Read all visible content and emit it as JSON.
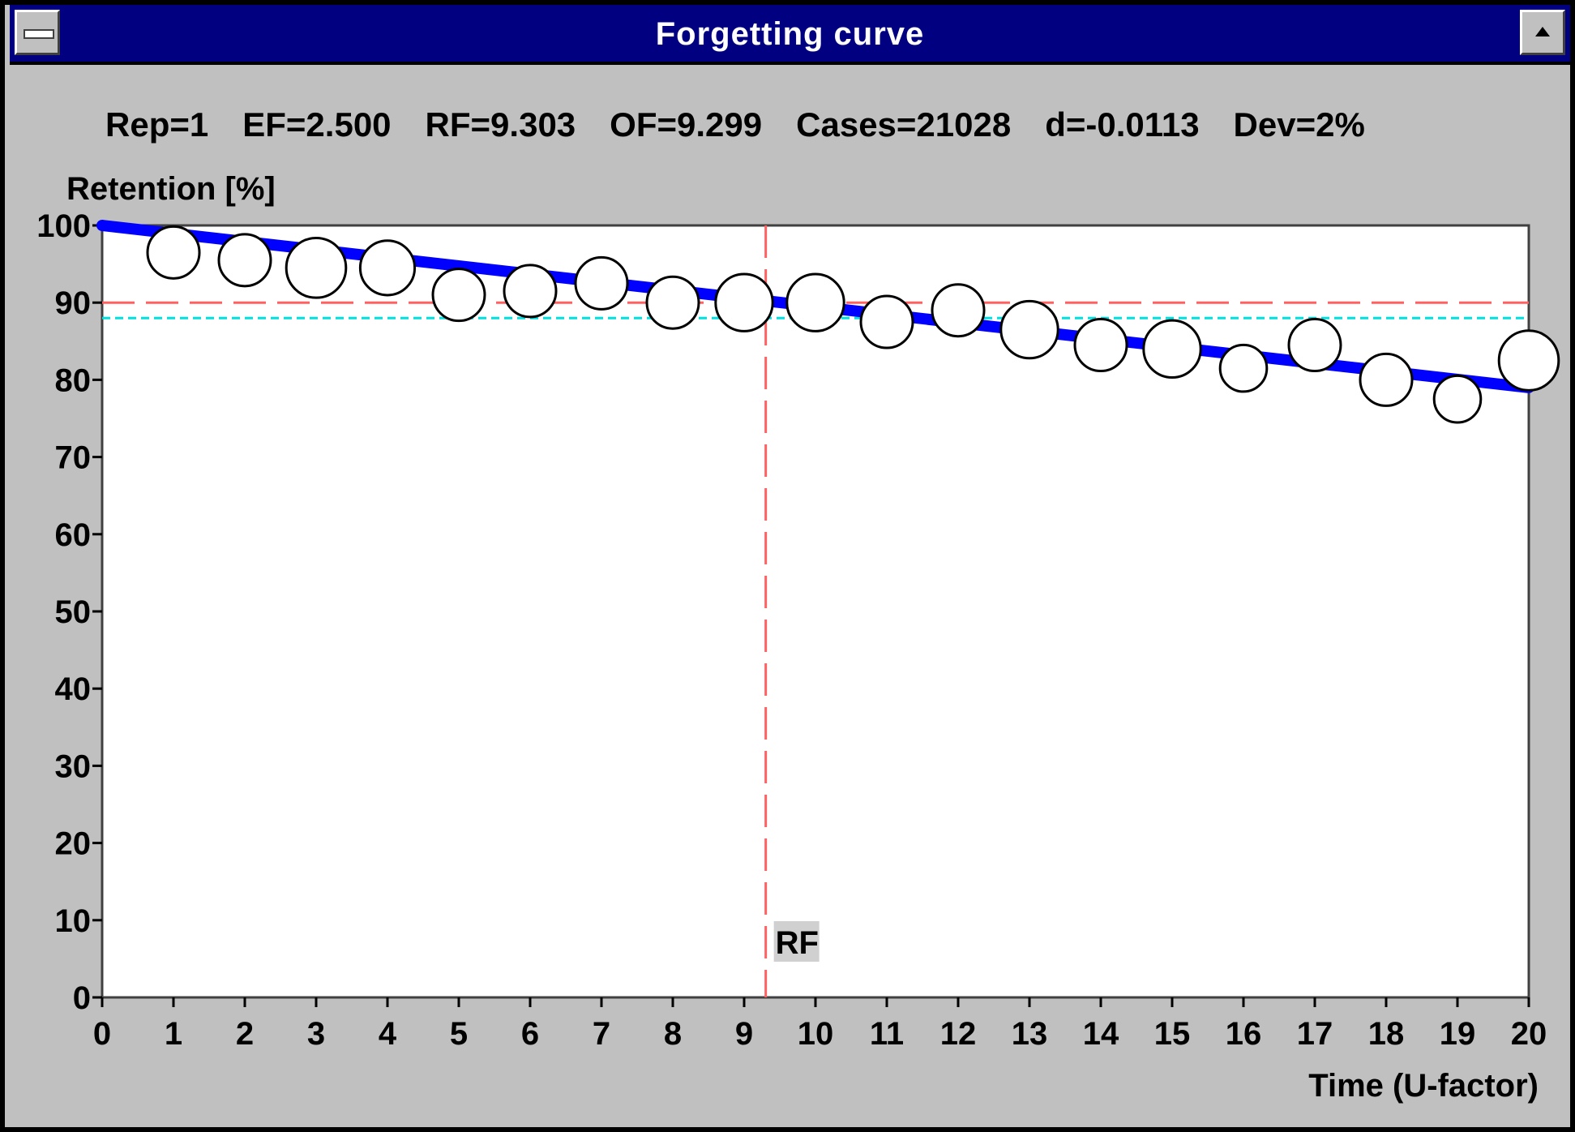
{
  "window": {
    "title": "Forgetting curve"
  },
  "stats": [
    "Rep=1",
    "EF=2.500",
    "RF=9.303",
    "OF=9.299",
    "Cases=21028",
    "d=-0.0113",
    "Dev=2%"
  ],
  "chart_data": {
    "type": "scatter",
    "title": "",
    "xlabel": "Time (U-factor)",
    "ylabel": "Retention [%]",
    "xlim": [
      0,
      20
    ],
    "ylim": [
      0,
      100
    ],
    "x_ticks": [
      0,
      1,
      2,
      3,
      4,
      5,
      6,
      7,
      8,
      9,
      10,
      11,
      12,
      13,
      14,
      15,
      16,
      17,
      18,
      19,
      20
    ],
    "y_ticks": [
      0,
      10,
      20,
      30,
      40,
      50,
      60,
      70,
      80,
      90,
      100
    ],
    "grid": false,
    "series": [
      {
        "kind": "line",
        "color": "#0000ff",
        "x": [
          0,
          20
        ],
        "y": [
          100,
          79
        ]
      },
      {
        "kind": "points",
        "x": [
          1,
          2,
          3,
          4,
          5,
          6,
          7,
          8,
          9,
          10,
          11,
          12,
          13,
          14,
          15,
          16,
          17,
          18,
          19,
          20
        ],
        "y": [
          96.5,
          95.5,
          94.5,
          94.5,
          91,
          91.5,
          92.5,
          90,
          90,
          90,
          87.5,
          89,
          86.5,
          84.5,
          84,
          81.5,
          84.5,
          80,
          77.5,
          82.5
        ],
        "size": [
          1.0,
          1.0,
          1.15,
          1.05,
          1.0,
          1.0,
          1.0,
          1.0,
          1.1,
          1.1,
          1.0,
          1.0,
          1.1,
          1.0,
          1.1,
          0.9,
          1.0,
          1.0,
          0.9,
          1.15
        ]
      }
    ],
    "reference_lines": [
      {
        "orientation": "horizontal",
        "value": 90,
        "color": "#ff6060",
        "style": "dashed"
      },
      {
        "orientation": "horizontal",
        "value": 88,
        "color": "#00e0e0",
        "style": "dotted"
      },
      {
        "orientation": "vertical",
        "value": 9.303,
        "color": "#ff6060",
        "style": "dashed",
        "label": "RF"
      }
    ]
  }
}
